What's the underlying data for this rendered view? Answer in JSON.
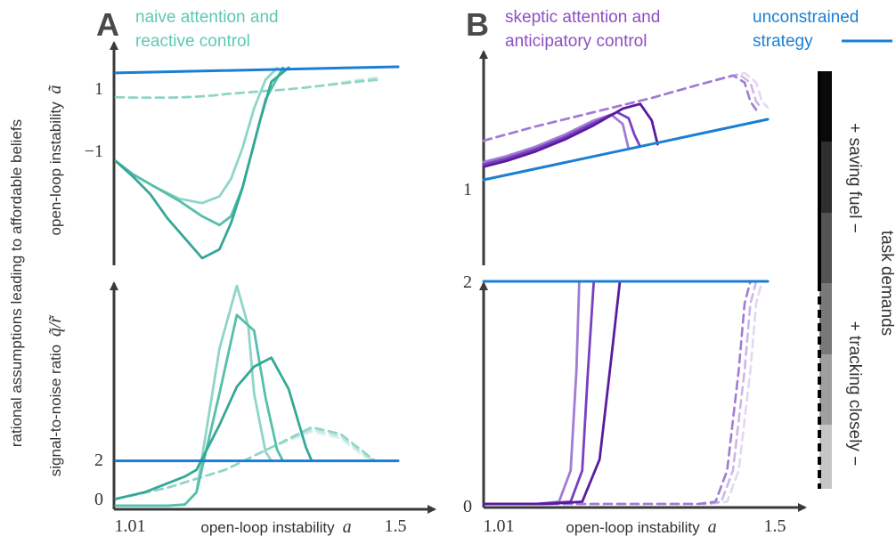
{
  "figure": {
    "left_ylabel": "rational assumptions leading to affordable beliefs",
    "legend": {
      "line1": "unconstrained",
      "line2": "strategy",
      "color": "#1a7fd4"
    },
    "colorbar": {
      "label": "task demands",
      "upper_label": "+ saving fuel −",
      "lower_label": "+ tracking closely −"
    },
    "colors": {
      "axis": "#3a3a3a",
      "blue": "#1a7fd4",
      "teal": "#3db8a4",
      "purple": "#6a2bb0"
    }
  },
  "chart_data": [
    {
      "panel_letter": "A",
      "panel_title_line1": "naive attention and",
      "panel_title_line2": "reactive control",
      "title_color": "#5cc9b4",
      "type": "line",
      "ylabel": "open-loop instability",
      "ylabel_symbol": "ã",
      "ytick_labels": [
        "1",
        "−1"
      ],
      "xlim": [
        1.01,
        1.5
      ],
      "series": [
        {
          "name": "unconstrained strategy",
          "x": [
            1.01,
            1.5
          ],
          "y": [
            1.0,
            1.14
          ]
        },
        {
          "x": [
            1.01,
            1.05,
            1.1,
            1.13,
            1.16,
            1.18,
            1.2,
            1.23,
            1.26,
            1.3,
            1.34,
            1.38,
            1.43,
            1.47
          ],
          "y": [
            0.45,
            0.44,
            0.44,
            0.45,
            0.47,
            0.49,
            0.52,
            0.55,
            0.58,
            0.62,
            0.67,
            0.73,
            0.8,
            0.85
          ]
        },
        {
          "x": [
            1.01,
            1.05,
            1.1,
            1.13,
            1.16,
            1.18,
            1.2,
            1.23,
            1.26,
            1.3,
            1.34,
            1.38,
            1.43,
            1.47
          ],
          "y": [
            0.45,
            0.44,
            0.44,
            0.45,
            0.47,
            0.49,
            0.52,
            0.55,
            0.58,
            0.62,
            0.67,
            0.73,
            0.82,
            0.88
          ]
        },
        {
          "x": [
            1.01,
            1.05,
            1.1,
            1.13,
            1.16,
            1.18,
            1.2,
            1.23,
            1.26,
            1.3,
            1.34,
            1.38,
            1.43,
            1.47
          ],
          "y": [
            0.45,
            0.44,
            0.44,
            0.45,
            0.47,
            0.49,
            0.52,
            0.55,
            0.58,
            0.62,
            0.67,
            0.74,
            0.85,
            0.91
          ]
        },
        {
          "x": [
            1.01,
            1.04,
            1.08,
            1.12,
            1.16,
            1.19,
            1.21,
            1.23,
            1.25,
            1.27,
            1.29
          ],
          "y": [
            -1.0,
            -1.3,
            -1.6,
            -1.85,
            -1.95,
            -1.8,
            -1.4,
            -0.7,
            0.2,
            0.85,
            1.11
          ]
        },
        {
          "x": [
            1.01,
            1.04,
            1.08,
            1.12,
            1.16,
            1.19,
            1.21,
            1.23,
            1.25,
            1.27,
            1.3
          ],
          "y": [
            -1.0,
            -1.3,
            -1.6,
            -1.9,
            -2.25,
            -2.45,
            -2.25,
            -1.6,
            -0.6,
            0.4,
            1.12
          ]
        },
        {
          "x": [
            1.01,
            1.04,
            1.07,
            1.1,
            1.13,
            1.16,
            1.19,
            1.21,
            1.23,
            1.26,
            1.28,
            1.31
          ],
          "y": [
            -1.0,
            -1.35,
            -1.75,
            -2.3,
            -2.75,
            -3.2,
            -3.0,
            -2.4,
            -1.6,
            -0.1,
            0.8,
            1.12
          ]
        }
      ]
    },
    {
      "panel_letter": "B",
      "panel_title_line1": "skeptic attention and",
      "panel_title_line2": "anticipatory control",
      "title_color": "#8e4fc4",
      "type": "line",
      "ytick_labels": [
        "1"
      ],
      "xlim": [
        1.01,
        1.5
      ],
      "series": [
        {
          "name": "unconstrained strategy",
          "x": [
            1.01,
            1.5
          ],
          "y": [
            1.0,
            1.51
          ]
        },
        {
          "x": [
            1.01,
            1.1,
            1.2,
            1.3,
            1.38,
            1.44,
            1.46,
            1.47,
            1.48
          ],
          "y": [
            1.33,
            1.45,
            1.57,
            1.69,
            1.8,
            1.88,
            1.82,
            1.66,
            1.59
          ]
        },
        {
          "x": [
            1.01,
            1.1,
            1.2,
            1.3,
            1.38,
            1.45,
            1.47,
            1.48,
            1.49
          ],
          "y": [
            1.33,
            1.45,
            1.57,
            1.69,
            1.8,
            1.89,
            1.82,
            1.66,
            1.6
          ]
        },
        {
          "x": [
            1.01,
            1.1,
            1.2,
            1.3,
            1.38,
            1.46,
            1.48,
            1.49,
            1.5
          ],
          "y": [
            1.33,
            1.45,
            1.57,
            1.69,
            1.8,
            1.9,
            1.82,
            1.66,
            1.61
          ]
        },
        {
          "x": [
            1.01,
            1.05,
            1.1,
            1.15,
            1.2,
            1.23,
            1.25,
            1.26
          ],
          "y": [
            1.15,
            1.2,
            1.28,
            1.38,
            1.5,
            1.55,
            1.47,
            1.26
          ]
        },
        {
          "x": [
            1.01,
            1.05,
            1.1,
            1.15,
            1.2,
            1.24,
            1.26,
            1.27,
            1.28
          ],
          "y": [
            1.13,
            1.18,
            1.26,
            1.36,
            1.48,
            1.57,
            1.52,
            1.38,
            1.28
          ]
        },
        {
          "x": [
            1.01,
            1.05,
            1.1,
            1.15,
            1.2,
            1.25,
            1.28,
            1.3,
            1.31
          ],
          "y": [
            1.11,
            1.16,
            1.24,
            1.34,
            1.46,
            1.6,
            1.64,
            1.5,
            1.3
          ]
        }
      ]
    },
    {
      "type": "line",
      "ylabel": "signal-to-noise ratio",
      "ylabel_symbol": "q̃/r̃",
      "xlabel": "open-loop instability",
      "xlabel_symbol": "a",
      "xtick_labels": [
        "1.01",
        "1.5"
      ],
      "ytick_labels": [
        "2",
        "0"
      ],
      "ylim": [
        0,
        10
      ],
      "series": [
        {
          "name": "unconstrained strategy",
          "x": [
            1.01,
            1.5
          ],
          "y": [
            2.0,
            2.0
          ]
        },
        {
          "x": [
            1.01,
            1.1,
            1.2,
            1.28,
            1.35,
            1.4,
            1.44,
            1.46,
            1.47
          ],
          "y": [
            0.3,
            0.8,
            1.6,
            2.6,
            3.5,
            3.2,
            2.4,
            2.0,
            2.0
          ]
        },
        {
          "x": [
            1.01,
            1.1,
            1.2,
            1.28,
            1.35,
            1.4,
            1.44,
            1.46,
            1.47
          ],
          "y": [
            0.3,
            0.8,
            1.6,
            2.6,
            3.4,
            3.1,
            2.3,
            2.0,
            2.0
          ]
        },
        {
          "x": [
            1.01,
            1.1,
            1.2,
            1.28,
            1.35,
            1.4,
            1.44,
            1.46,
            1.47
          ],
          "y": [
            0.3,
            0.8,
            1.6,
            2.6,
            3.3,
            3.0,
            2.2,
            2.0,
            2.0
          ]
        },
        {
          "x": [
            1.01,
            1.06,
            1.1,
            1.13,
            1.15,
            1.19,
            1.22,
            1.24,
            1.25,
            1.27,
            1.28
          ],
          "y": [
            0.0,
            0.0,
            0.0,
            0.05,
            0.6,
            7.0,
            9.8,
            8.0,
            5.0,
            2.4,
            2.0
          ]
        },
        {
          "x": [
            1.01,
            1.06,
            1.1,
            1.13,
            1.15,
            1.19,
            1.22,
            1.25,
            1.27,
            1.29,
            1.3
          ],
          "y": [
            0.0,
            0.0,
            0.0,
            0.05,
            0.6,
            5.0,
            8.5,
            7.8,
            4.8,
            2.5,
            2.0
          ]
        },
        {
          "x": [
            1.01,
            1.06,
            1.1,
            1.13,
            1.15,
            1.19,
            1.22,
            1.25,
            1.28,
            1.31,
            1.34,
            1.35
          ],
          "y": [
            0.3,
            0.6,
            1.0,
            1.3,
            1.6,
            3.6,
            5.3,
            6.2,
            6.6,
            5.2,
            2.6,
            2.0
          ]
        }
      ]
    },
    {
      "type": "line",
      "xlabel": "open-loop instability",
      "xlabel_symbol": "a",
      "xtick_labels": [
        "1.01",
        "1.5"
      ],
      "ytick_labels": [
        "2",
        "0"
      ],
      "ylim": [
        0,
        2
      ],
      "series": [
        {
          "name": "unconstrained strategy",
          "x": [
            1.01,
            1.5
          ],
          "y": [
            2.0,
            2.0
          ]
        },
        {
          "x": [
            1.01,
            1.2,
            1.38,
            1.41,
            1.43,
            1.45,
            1.46,
            1.47
          ],
          "y": [
            0.0,
            0.0,
            0.0,
            0.02,
            0.3,
            1.2,
            1.8,
            2.0
          ]
        },
        {
          "x": [
            1.01,
            1.2,
            1.39,
            1.42,
            1.44,
            1.46,
            1.47,
            1.48
          ],
          "y": [
            0.0,
            0.0,
            0.0,
            0.02,
            0.3,
            1.2,
            1.8,
            2.0
          ]
        },
        {
          "x": [
            1.01,
            1.2,
            1.4,
            1.43,
            1.45,
            1.47,
            1.48,
            1.49
          ],
          "y": [
            0.0,
            0.0,
            0.0,
            0.02,
            0.3,
            1.2,
            1.8,
            2.0
          ]
        },
        {
          "x": [
            1.01,
            1.1,
            1.14,
            1.16,
            1.17,
            1.175
          ],
          "y": [
            0.0,
            0.0,
            0.02,
            0.3,
            1.2,
            2.0
          ]
        },
        {
          "x": [
            1.01,
            1.1,
            1.16,
            1.18,
            1.19,
            1.2
          ],
          "y": [
            0.0,
            0.0,
            0.02,
            0.3,
            1.2,
            2.0
          ]
        },
        {
          "x": [
            1.01,
            1.12,
            1.18,
            1.21,
            1.23,
            1.245
          ],
          "y": [
            0.0,
            0.0,
            0.02,
            0.4,
            1.3,
            2.0
          ]
        }
      ]
    }
  ]
}
